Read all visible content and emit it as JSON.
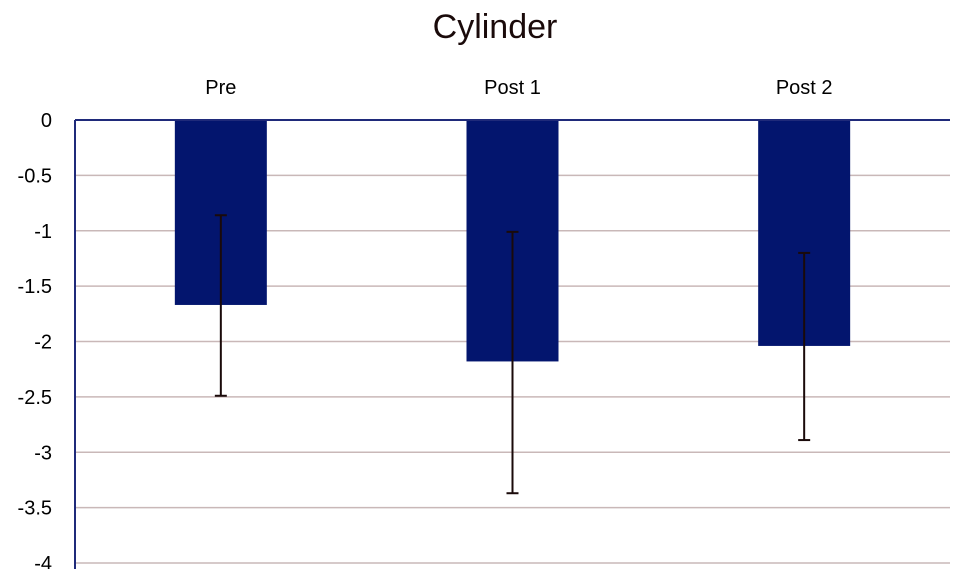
{
  "chart_data": {
    "type": "bar",
    "title": "Cylinder",
    "categories": [
      "Pre",
      "Post 1",
      "Post 2"
    ],
    "values": [
      -1.67,
      -2.18,
      -2.04
    ],
    "error_bars": [
      {
        "low": -2.49,
        "high": -0.86
      },
      {
        "low": -3.37,
        "high": -1.01
      },
      {
        "low": -2.89,
        "high": -1.2
      }
    ],
    "yticks": [
      "0",
      "-0.5",
      "-1",
      "-1.5",
      "-2",
      "-2.5",
      "-3",
      "-3.5",
      "-4"
    ],
    "ylim": [
      -4,
      0
    ],
    "category_labels_position": "top",
    "grid": true,
    "xlabel": "",
    "ylabel": "",
    "colors": {
      "bar": "#03156e",
      "axis": "#1f2a7a",
      "grid": "#c9b8b8",
      "error_bar": "#1a0a0a"
    }
  }
}
